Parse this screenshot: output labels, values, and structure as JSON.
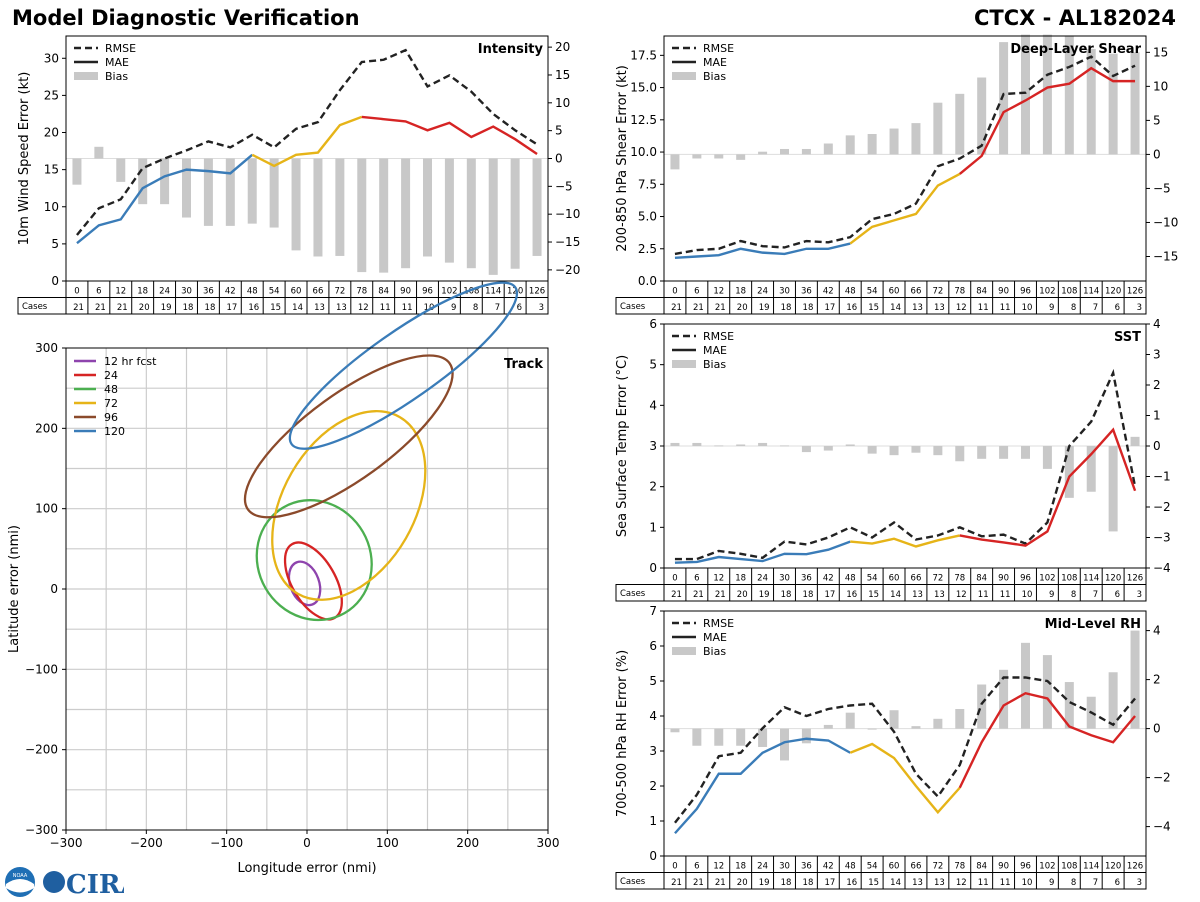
{
  "header": {
    "title": "Model Diagnostic Verification",
    "storm": "CTCX - AL182024"
  },
  "legend_common": {
    "rmse": "RMSE",
    "mae": "MAE",
    "bias": "Bias"
  },
  "colors": {
    "early": "#3a7cb8",
    "mid": "#e6b418",
    "late": "#d62424",
    "rmse": "#222222",
    "bias": "#c8c8c8",
    "grid": "#cccccc"
  },
  "logos": {
    "noaa": "NOAA",
    "cira": "CIRA"
  },
  "chart_data": [
    {
      "id": "intensity",
      "type": "line",
      "title": "Intensity",
      "ylabel": "10m Wind Speed Error (kt)",
      "ylim": [
        0,
        33
      ],
      "yticks": [
        0,
        5,
        10,
        15,
        20,
        25,
        30
      ],
      "y2lim": [
        -22,
        22
      ],
      "y2ticks": [
        -20,
        -15,
        -10,
        -5,
        0,
        5,
        10,
        15,
        20
      ],
      "x": [
        0,
        6,
        12,
        18,
        24,
        30,
        36,
        42,
        48,
        54,
        60,
        66,
        72,
        78,
        84,
        90,
        96,
        102,
        108,
        114,
        120,
        126
      ],
      "cases": [
        21,
        21,
        21,
        20,
        19,
        18,
        18,
        17,
        16,
        15,
        14,
        13,
        13,
        12,
        11,
        11,
        10,
        9,
        8,
        7,
        6,
        3
      ],
      "cases_label": "Cases",
      "series": [
        {
          "name": "RMSE",
          "values": [
            6.2,
            9.8,
            11.0,
            15.2,
            16.5,
            17.6,
            18.8,
            18.0,
            19.7,
            18.0,
            20.5,
            21.4,
            25.7,
            29.5,
            29.8,
            31.1,
            26.2,
            27.7,
            25.5,
            22.5,
            20.3,
            18.4
          ]
        },
        {
          "name": "MAE",
          "values": [
            5.1,
            7.5,
            8.3,
            12.5,
            14.1,
            15.0,
            14.8,
            14.5,
            17.0,
            15.5,
            17.0,
            17.3,
            21.0,
            22.1,
            21.8,
            21.5,
            20.3,
            21.3,
            19.4,
            20.8,
            19.1,
            17.1
          ]
        },
        {
          "name": "Bias",
          "values": [
            -4.7,
            2.1,
            -4.2,
            -8.2,
            -8.2,
            -10.6,
            -12.1,
            -12.1,
            -11.7,
            -12.4,
            -16.5,
            -17.6,
            -17.5,
            -20.4,
            -20.5,
            -19.7,
            -17.6,
            -18.7,
            -19.7,
            -20.9,
            -19.8,
            -17.5
          ]
        }
      ]
    },
    {
      "id": "shear",
      "type": "line",
      "title": "Deep-Layer Shear",
      "ylabel": "200-850 hPa Shear Error (kt)",
      "ylim": [
        0,
        19
      ],
      "yticks": [
        0.0,
        2.5,
        5.0,
        7.5,
        10.0,
        12.5,
        15.0,
        17.5
      ],
      "y2lim": [
        -18.6,
        17.4
      ],
      "y2ticks": [
        -15,
        -10,
        -5,
        0,
        5,
        10,
        15
      ],
      "x": [
        0,
        6,
        12,
        18,
        24,
        30,
        36,
        42,
        48,
        54,
        60,
        66,
        72,
        78,
        84,
        90,
        96,
        102,
        108,
        114,
        120,
        126
      ],
      "cases": [
        21,
        21,
        21,
        20,
        19,
        18,
        18,
        17,
        16,
        15,
        14,
        13,
        13,
        12,
        11,
        11,
        10,
        9,
        8,
        7,
        6,
        3
      ],
      "cases_label": "Cases",
      "series": [
        {
          "name": "RMSE",
          "values": [
            2.1,
            2.4,
            2.5,
            3.1,
            2.7,
            2.6,
            3.1,
            3.0,
            3.4,
            4.8,
            5.2,
            6.0,
            8.9,
            9.5,
            10.5,
            14.5,
            14.6,
            16.0,
            16.6,
            17.4,
            15.9,
            16.7
          ]
        },
        {
          "name": "MAE",
          "values": [
            1.8,
            1.9,
            2.0,
            2.5,
            2.2,
            2.1,
            2.5,
            2.5,
            2.9,
            4.2,
            4.7,
            5.2,
            7.4,
            8.3,
            9.7,
            13.1,
            14.0,
            15.0,
            15.3,
            16.5,
            15.5,
            15.5
          ]
        },
        {
          "name": "Bias",
          "values": [
            -2.2,
            -0.6,
            -0.6,
            -0.8,
            0.4,
            0.8,
            0.8,
            1.6,
            2.8,
            3.0,
            3.8,
            4.6,
            7.6,
            8.9,
            11.3,
            16.5,
            17.6,
            17.6,
            17.4,
            15.5,
            14.8,
            15.0
          ]
        }
      ]
    },
    {
      "id": "sst",
      "type": "line",
      "title": "SST",
      "ylabel": "Sea Surface Temp Error (°C)",
      "ylim": [
        0,
        6
      ],
      "yticks": [
        0,
        1,
        2,
        3,
        4,
        5,
        6
      ],
      "y2lim": [
        -4,
        4
      ],
      "y2ticks": [
        -4,
        -3,
        -2,
        -1,
        0,
        1,
        2,
        3,
        4
      ],
      "x": [
        0,
        6,
        12,
        18,
        24,
        30,
        36,
        42,
        48,
        54,
        60,
        66,
        72,
        78,
        84,
        90,
        96,
        102,
        108,
        114,
        120,
        126
      ],
      "cases": [
        21,
        21,
        21,
        20,
        19,
        18,
        18,
        17,
        16,
        15,
        14,
        13,
        13,
        12,
        11,
        11,
        10,
        9,
        8,
        7,
        6,
        3
      ],
      "cases_label": "Cases",
      "series": [
        {
          "name": "RMSE",
          "values": [
            0.22,
            0.22,
            0.42,
            0.35,
            0.25,
            0.65,
            0.58,
            0.75,
            1.0,
            0.75,
            1.12,
            0.7,
            0.8,
            1.0,
            0.78,
            0.82,
            0.6,
            1.12,
            3.0,
            3.6,
            4.8,
            2.0
          ]
        },
        {
          "name": "MAE",
          "values": [
            0.13,
            0.15,
            0.27,
            0.22,
            0.17,
            0.35,
            0.34,
            0.45,
            0.65,
            0.6,
            0.72,
            0.53,
            0.68,
            0.8,
            0.7,
            0.63,
            0.55,
            0.9,
            2.25,
            2.8,
            3.4,
            1.9
          ]
        },
        {
          "name": "Bias",
          "values": [
            0.1,
            0.1,
            0.02,
            0.05,
            0.1,
            0.02,
            -0.2,
            -0.15,
            0.05,
            -0.25,
            -0.3,
            -0.22,
            -0.3,
            -0.5,
            -0.42,
            -0.42,
            -0.42,
            -0.75,
            -1.7,
            -1.5,
            -2.8,
            0.3
          ]
        }
      ]
    },
    {
      "id": "rh",
      "type": "line",
      "title": "Mid-Level RH",
      "ylabel": "700-500 hPa RH Error (%)",
      "ylim": [
        0,
        7
      ],
      "yticks": [
        0,
        1,
        2,
        3,
        4,
        5,
        6,
        7
      ],
      "y2lim": [
        -5.2,
        4.8
      ],
      "y2ticks": [
        -4,
        -2,
        0,
        2,
        4
      ],
      "x": [
        0,
        6,
        12,
        18,
        24,
        30,
        36,
        42,
        48,
        54,
        60,
        66,
        72,
        78,
        84,
        90,
        96,
        102,
        108,
        114,
        120,
        126
      ],
      "cases": [
        21,
        21,
        21,
        20,
        19,
        18,
        18,
        17,
        16,
        15,
        14,
        13,
        13,
        12,
        11,
        11,
        10,
        9,
        8,
        7,
        6,
        3
      ],
      "cases_label": "Cases",
      "series": [
        {
          "name": "RMSE",
          "values": [
            0.95,
            1.75,
            2.85,
            2.95,
            3.65,
            4.25,
            4.0,
            4.2,
            4.3,
            4.35,
            3.55,
            2.35,
            1.7,
            2.6,
            4.35,
            5.1,
            5.1,
            5.0,
            4.4,
            4.1,
            3.75,
            4.5
          ]
        },
        {
          "name": "MAE",
          "values": [
            0.65,
            1.35,
            2.35,
            2.35,
            2.95,
            3.25,
            3.35,
            3.3,
            2.95,
            3.2,
            2.8,
            2.0,
            1.25,
            1.95,
            3.25,
            4.3,
            4.65,
            4.5,
            3.7,
            3.45,
            3.25,
            4.0
          ]
        },
        {
          "name": "Bias",
          "values": [
            -0.15,
            -0.7,
            -0.7,
            -0.7,
            -0.75,
            -1.3,
            -0.6,
            0.15,
            0.65,
            0.0,
            0.75,
            0.1,
            0.4,
            0.8,
            1.8,
            2.4,
            3.5,
            3.0,
            1.9,
            1.3,
            2.3,
            4.0
          ]
        }
      ]
    },
    {
      "id": "track",
      "type": "scatter",
      "title": "Track",
      "xlabel": "Longitude error (nmi)",
      "ylabel": "Latitude error (nmi)",
      "xlim": [
        -300,
        300
      ],
      "ylim": [
        -300,
        300
      ],
      "xticks": [
        -300,
        -200,
        -100,
        0,
        100,
        200,
        300
      ],
      "yticks": [
        -300,
        -200,
        -100,
        0,
        100,
        200,
        300
      ],
      "ellipses": [
        {
          "name": "12 hr fcst",
          "color": "#8e44ad",
          "cx": -3,
          "cy": 7,
          "rx": 28,
          "ry": 18,
          "angle": 290
        },
        {
          "name": "24",
          "color": "#d62424",
          "cx": 8,
          "cy": 10,
          "rx": 53,
          "ry": 27,
          "angle": 300
        },
        {
          "name": "48",
          "color": "#4caf50",
          "cx": 9,
          "cy": 36,
          "rx": 76,
          "ry": 70,
          "angle": 300
        },
        {
          "name": "72",
          "color": "#e6b418",
          "cx": 52,
          "cy": 104,
          "rx": 127,
          "ry": 82,
          "angle": 60
        },
        {
          "name": "96",
          "color": "#8b4a2b",
          "cx": 52,
          "cy": 190,
          "rx": 155,
          "ry": 53,
          "angle": 36
        },
        {
          "name": "120",
          "color": "#3a7cb8",
          "cx": 120,
          "cy": 278,
          "rx": 170,
          "ry": 42,
          "angle": 35
        }
      ]
    }
  ]
}
